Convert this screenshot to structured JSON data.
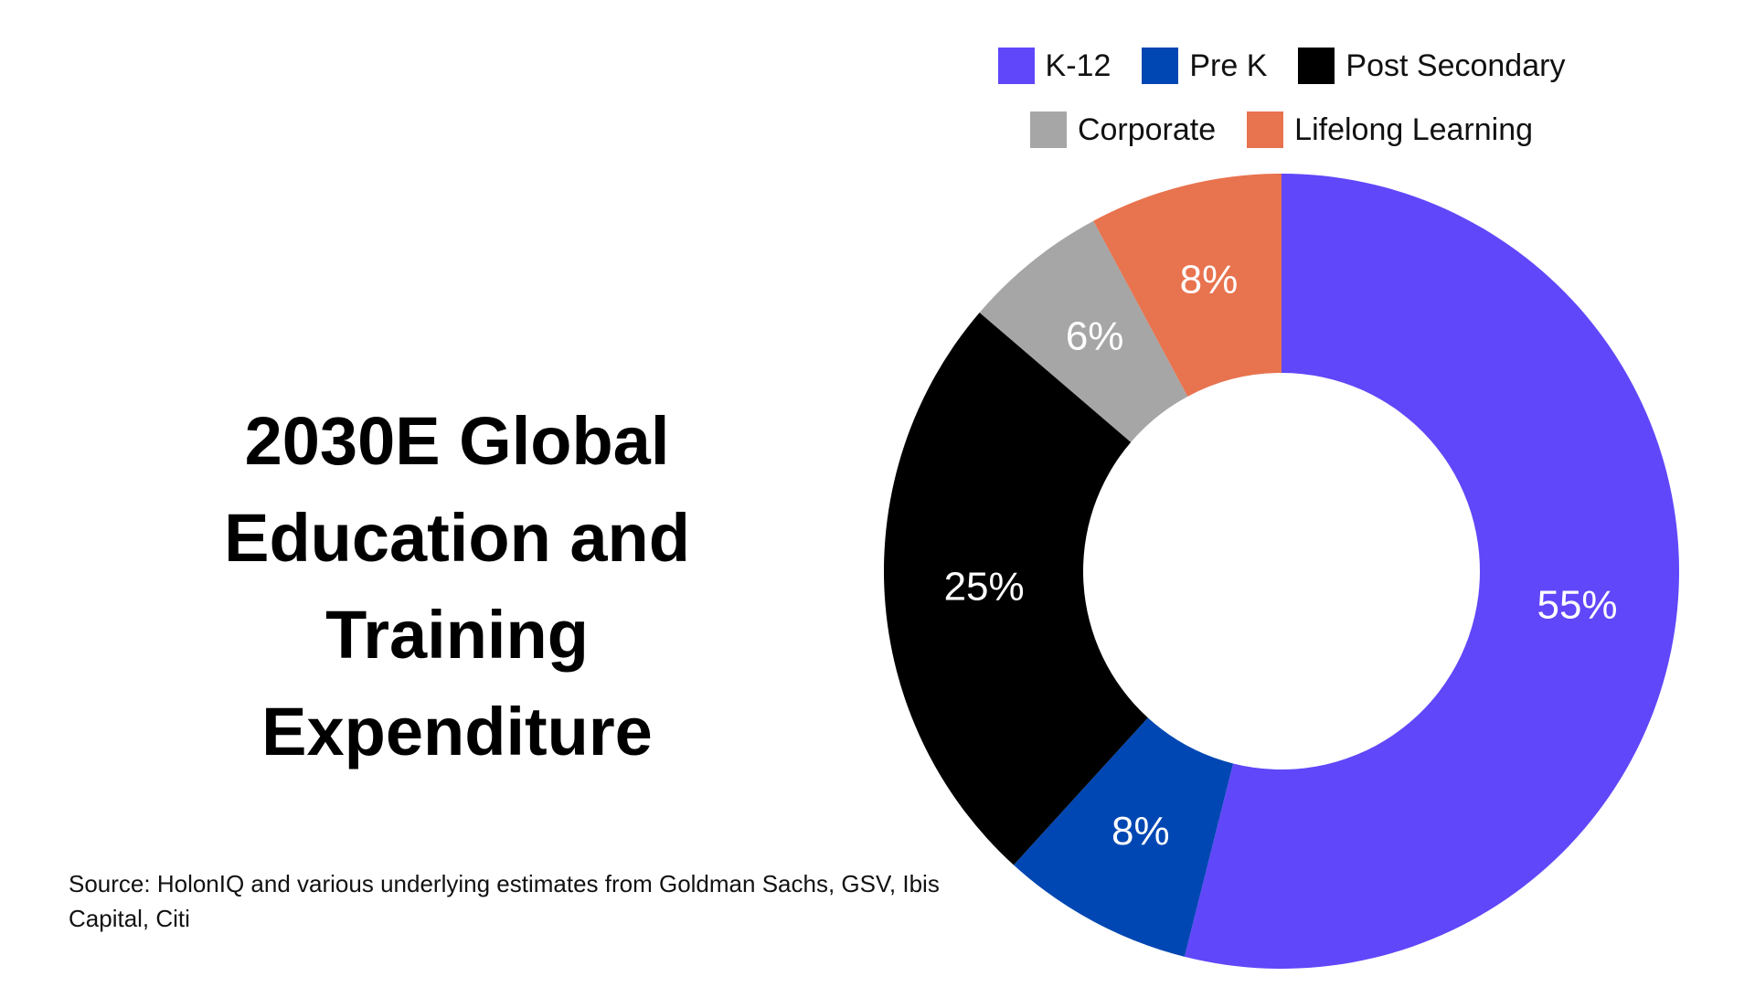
{
  "chart_data": {
    "type": "donut",
    "title": "2030E Global Education and Training Expenditure",
    "source": "Source: HolonIQ and various underlying estimates from Goldman Sachs, GSV, Ibis Capital, Citi",
    "categories": [
      "K-12",
      "Pre K",
      "Post Secondary",
      "Corporate",
      "Lifelong Learning"
    ],
    "values": [
      55,
      8,
      25,
      6,
      8
    ],
    "value_labels": [
      "55%",
      "8%",
      "25%",
      "6%",
      "8%"
    ],
    "colors": [
      "#6047f9",
      "#0047b3",
      "#000000",
      "#a6a6a6",
      "#e8734f"
    ]
  }
}
